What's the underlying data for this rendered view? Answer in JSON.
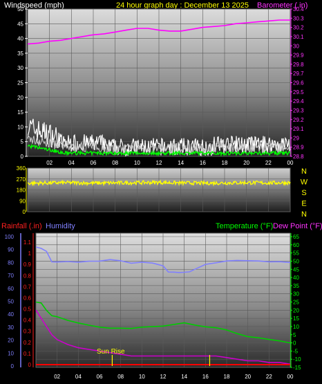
{
  "header": {
    "wind_label": "Windspeed (mph)",
    "title": "24 hour graph day : December 13 2025",
    "baro_label": "Barometer (.in)"
  },
  "direction_labels": [
    "N",
    "W",
    "S",
    "E",
    "N"
  ],
  "lower_header": {
    "rain_label": "Rainfall (.in)",
    "humidity_label": "Humidity",
    "temp_label": "Temperature (°F)",
    "dew_label": "Dew Point (°F)"
  },
  "annotations": {
    "sunrise": "Sun Rise",
    "sunrise_hour": 7.2,
    "sunset_hour": 16.4
  },
  "colors": {
    "wind": "#ffffff",
    "gust": "#ffffff",
    "wind_avg": "#00ff00",
    "barometer": "#ff00ff",
    "direction": "#ffff00",
    "humidity": "#8080ff",
    "temperature": "#00cc00",
    "dewpoint": "#cc00cc",
    "rain": "#ff0000",
    "header_yellow": "#ffff00",
    "header_magenta": "#ff33ff"
  },
  "chart_data": [
    {
      "type": "line",
      "name": "wind-barometer",
      "x_ticks": [
        "02",
        "04",
        "06",
        "08",
        "10",
        "12",
        "14",
        "16",
        "18",
        "20",
        "22",
        "00"
      ],
      "xlim": [
        0,
        24
      ],
      "y_left_ticks": [
        "0",
        "5",
        "10",
        "15",
        "20",
        "25",
        "30",
        "35",
        "40",
        "45",
        "50"
      ],
      "ylim_left": [
        0,
        50
      ],
      "y_right_ticks": [
        "28.8",
        "28.9",
        "29",
        "29.1",
        "29.2",
        "29.3",
        "29.4",
        "29.5",
        "29.6",
        "29.7",
        "29.8",
        "29.9",
        "30",
        "30.1",
        "30.2",
        "30.3",
        "30.4"
      ],
      "ylim_right": [
        28.8,
        30.4
      ],
      "series": [
        {
          "name": "Barometer (.in)",
          "axis": "right",
          "x": [
            0,
            1,
            2,
            3,
            4,
            5,
            6,
            7,
            8,
            9,
            10,
            11,
            12,
            13,
            14,
            15,
            16,
            17,
            18,
            19,
            20,
            21,
            22,
            23,
            24
          ],
          "values": [
            30.02,
            30.03,
            30.05,
            30.06,
            30.08,
            30.1,
            30.12,
            30.13,
            30.15,
            30.17,
            30.19,
            30.19,
            30.17,
            30.16,
            30.16,
            30.18,
            30.2,
            30.21,
            30.22,
            30.24,
            30.25,
            30.26,
            30.27,
            30.28,
            30.28
          ]
        }
      ]
    },
    {
      "type": "line",
      "name": "wind-direction",
      "x_ticks": [
        "02",
        "04",
        "06",
        "08",
        "10",
        "12",
        "14",
        "16",
        "18",
        "20",
        "22",
        "00"
      ],
      "xlim": [
        0,
        24
      ],
      "y_ticks": [
        "0",
        "90",
        "180",
        "270",
        "360"
      ],
      "ylim": [
        0,
        360
      ],
      "series": [
        {
          "name": "direction",
          "x": [
            0,
            2,
            4,
            6,
            8,
            10,
            12,
            14,
            16,
            18,
            20,
            22,
            24
          ],
          "values": [
            235,
            238,
            240,
            236,
            238,
            240,
            242,
            238,
            236,
            238,
            240,
            238,
            240
          ]
        }
      ]
    },
    {
      "type": "line",
      "name": "temperature-humidity",
      "x_ticks": [
        "02",
        "04",
        "06",
        "08",
        "10",
        "12",
        "14",
        "16",
        "18",
        "20",
        "22",
        "00"
      ],
      "xlim": [
        0,
        24
      ],
      "y_left_ticks": [
        "0",
        "10",
        "20",
        "30",
        "40",
        "50",
        "60",
        "70",
        "80",
        "90",
        "100"
      ],
      "ylim_left": [
        0,
        100
      ],
      "y_rain_ticks": [
        "0",
        "0.1",
        "0.2",
        "0.3",
        "0.4",
        "0.5",
        "0.6",
        "0.7",
        "0.8",
        "0.9",
        "1",
        "1.1"
      ],
      "ylim_rain": [
        0,
        1.15
      ],
      "y_right_ticks": [
        "-15",
        "-10",
        "-5",
        "0",
        "5",
        "10",
        "15",
        "20",
        "25",
        "30",
        "35",
        "40",
        "45",
        "50",
        "55",
        "60",
        "65"
      ],
      "ylim_right": [
        -15,
        65
      ],
      "series": [
        {
          "name": "Humidity",
          "axis": "left",
          "x": [
            0,
            0.5,
            1,
            1.5,
            2,
            3,
            4,
            5,
            6,
            7,
            8,
            9,
            10,
            11,
            12,
            12.5,
            13,
            13.5,
            14,
            14.5,
            15,
            16,
            17,
            18,
            19,
            20,
            21,
            22,
            23,
            24
          ],
          "values": [
            92,
            91,
            89,
            80,
            80,
            81,
            80,
            81,
            81,
            82,
            81,
            80,
            80,
            79,
            77,
            73,
            72,
            72,
            72,
            73,
            75,
            78,
            80,
            81,
            81,
            81,
            81,
            81,
            81,
            80
          ]
        },
        {
          "name": "Temperature (°F)",
          "axis": "right",
          "x": [
            0,
            0.5,
            1,
            1.5,
            2,
            3,
            4,
            5,
            6,
            7,
            8,
            9,
            10,
            11,
            12,
            13,
            14,
            15,
            16,
            17,
            18,
            19,
            20,
            21,
            22,
            23,
            24
          ],
          "values": [
            25,
            24,
            20,
            17,
            16,
            14,
            12,
            11,
            10,
            9,
            9,
            9,
            10,
            10,
            10,
            11,
            12,
            11,
            10,
            9,
            8,
            6,
            4,
            3,
            2,
            1,
            0
          ]
        },
        {
          "name": "Dew Point (°F)",
          "axis": "right",
          "x": [
            0,
            0.5,
            1,
            1.5,
            2,
            3,
            4,
            5,
            6,
            7,
            8,
            9,
            10,
            11,
            12,
            13,
            14,
            15,
            16,
            17,
            18,
            19,
            20,
            21,
            22,
            23,
            24
          ],
          "values": [
            20,
            15,
            10,
            5,
            2,
            -1,
            -3,
            -4,
            -5,
            -6,
            -7,
            -8,
            -8,
            -8,
            -8,
            -8,
            -8,
            -8,
            -8,
            -8,
            -9,
            -10,
            -11,
            -11,
            -12,
            -12,
            -13
          ]
        },
        {
          "name": "Rainfall (.in)",
          "axis": "rain",
          "x": [
            0,
            24
          ],
          "values": [
            0,
            0
          ]
        }
      ]
    }
  ]
}
